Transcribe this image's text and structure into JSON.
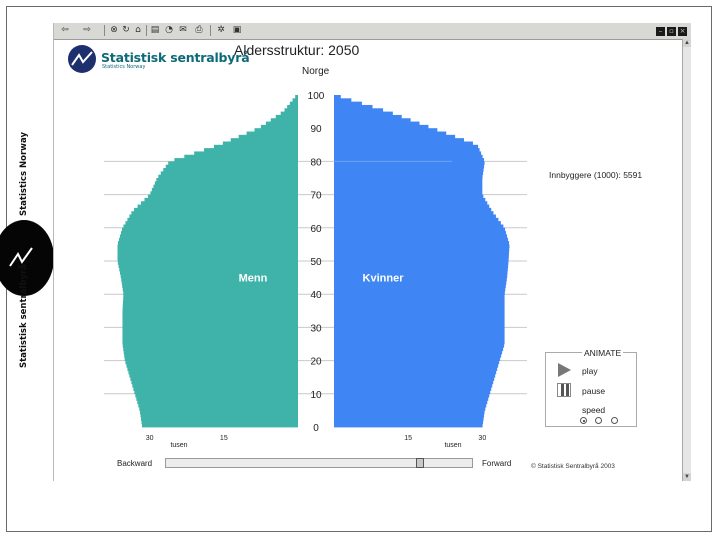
{
  "side_brand": {
    "top_text": "Statistics Norway",
    "bottom_text": "Statistisk sentralbyrå"
  },
  "logo": {
    "name": "Statistisk sentralbyrå",
    "sub": "Statistics Norway",
    "color": "#1e2f6e"
  },
  "toolbar": {
    "icons": [
      "back-arrow-icon",
      "forward-arrow-icon",
      "stop-icon",
      "refresh-icon",
      "home-icon",
      "favorites-icon",
      "history-icon",
      "mail-icon",
      "print-icon",
      "settings-icon",
      "window-icon"
    ]
  },
  "header": {
    "title": "Aldersstruktur: 2050",
    "subtitle": "Norge"
  },
  "info": {
    "population": "Innbyggere (1000): 5591"
  },
  "animate": {
    "title": "ANIMATE",
    "play": "play",
    "pause": "pause",
    "speed": "speed",
    "speed_options": 3,
    "speed_selected": 0
  },
  "nav": {
    "backward": "Backward",
    "forward": "Forward",
    "slider_position": 0.83
  },
  "copyright": "© Statistisk Sentralbyrå 2003",
  "chart_data": {
    "type": "bar",
    "title": "Aldersstruktur: 2050",
    "subtitle": "Norge",
    "orientation": "horizontal-population-pyramid",
    "y_axis": {
      "label": "",
      "range": [
        0,
        100
      ],
      "ticks": [
        "0",
        "10",
        "20",
        "30",
        "40",
        "50",
        "60",
        "70",
        "80",
        "90",
        "100"
      ]
    },
    "x_unit": "tusen",
    "x_ticks_left": [
      "30",
      "15"
    ],
    "x_ticks_right": [
      "15",
      "30"
    ],
    "x_range": [
      0,
      36
    ],
    "series_labels": [
      "Menn",
      "Kvinner"
    ],
    "colors": {
      "menn": "#3fb3a9",
      "kvinner": "#3f86f4"
    },
    "age_breakpoints": [
      0,
      5,
      10,
      15,
      20,
      25,
      30,
      35,
      40,
      45,
      50,
      55,
      60,
      65,
      70,
      75,
      80,
      85,
      90,
      95,
      100
    ],
    "series": [
      {
        "name": "Menn",
        "values": [
          31.5,
          32.0,
          33.0,
          34.0,
          35.0,
          35.5,
          35.5,
          35.5,
          35.3,
          35.8,
          36.5,
          36.5,
          35.5,
          33.5,
          30.0,
          28.5,
          26.0,
          16.0,
          8.0,
          3.0,
          0.3
        ]
      },
      {
        "name": "Kvinner",
        "values": [
          30.0,
          30.5,
          31.5,
          32.5,
          33.5,
          34.5,
          34.5,
          34.5,
          34.5,
          35.0,
          35.3,
          35.5,
          34.5,
          32.0,
          30.0,
          30.0,
          30.5,
          29.0,
          20.0,
          11.0,
          0.3
        ]
      }
    ]
  }
}
